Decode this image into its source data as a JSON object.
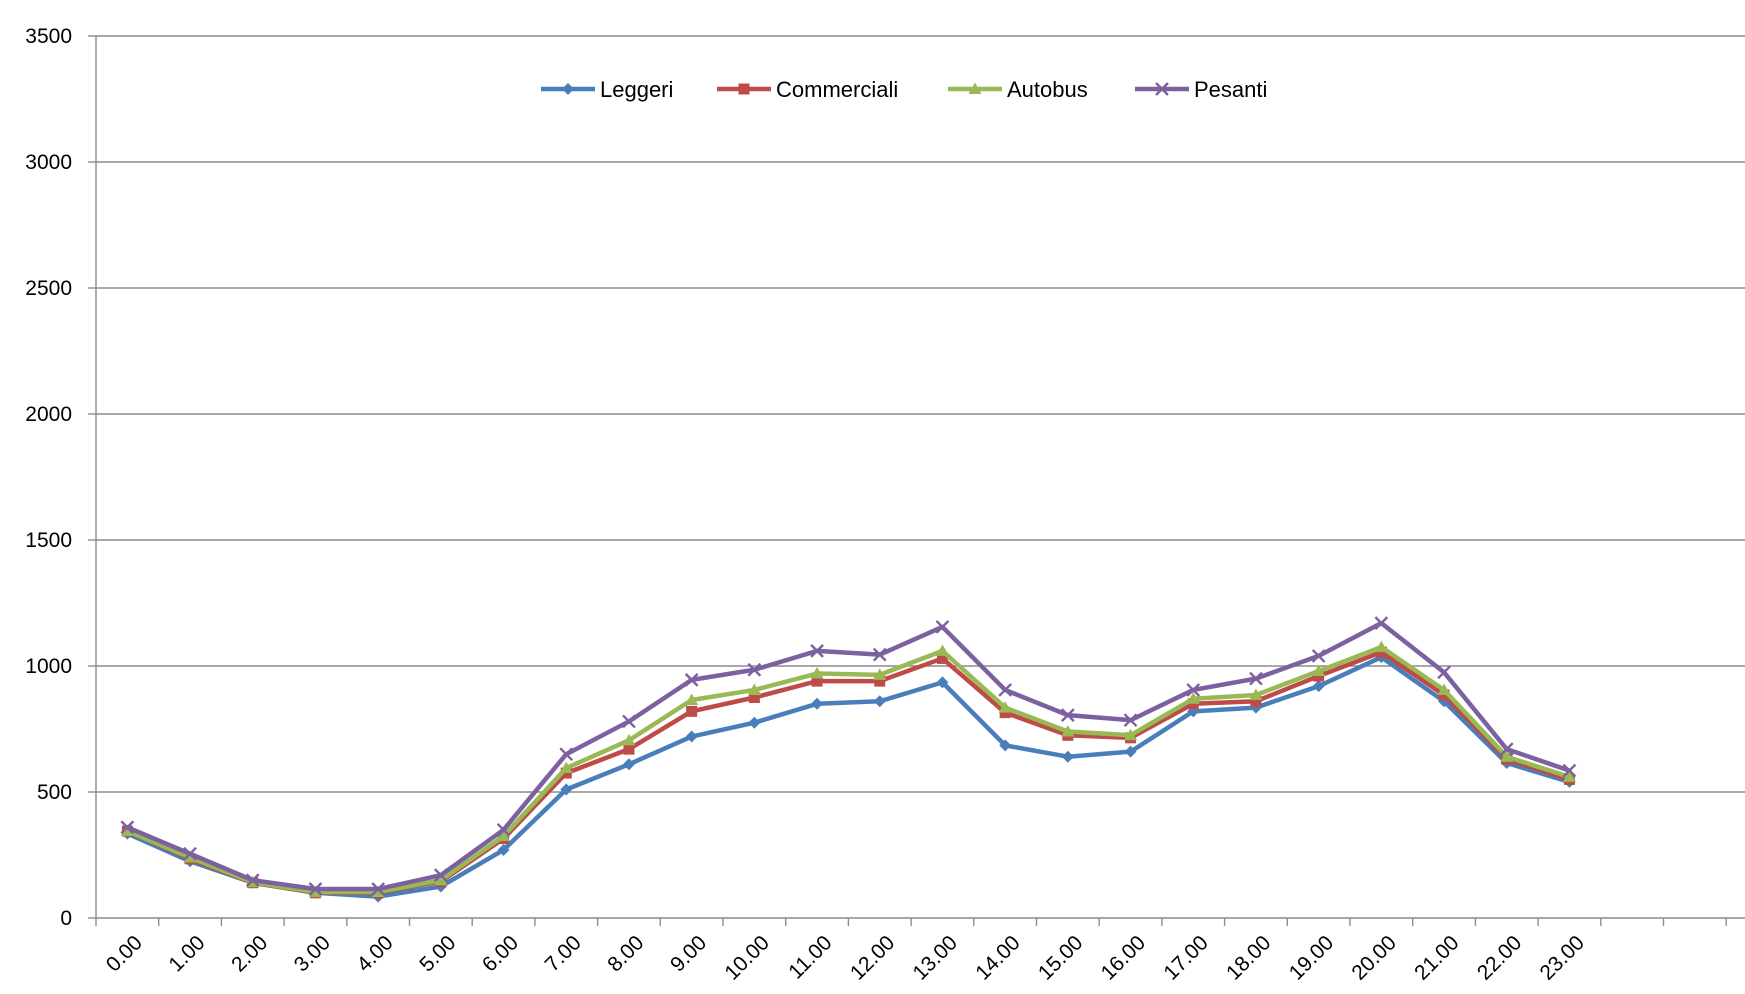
{
  "chart_data": {
    "type": "line",
    "title": "",
    "xlabel": "",
    "ylabel": "",
    "ylim": [
      0,
      3500
    ],
    "yticks": [
      0,
      500,
      1000,
      1500,
      2000,
      2500,
      3000,
      3500
    ],
    "grid": "horizontal",
    "legend_position": "top-center",
    "categories": [
      "0.00",
      "1.00",
      "2.00",
      "3.00",
      "4.00",
      "5.00",
      "6.00",
      "7.00",
      "8.00",
      "9.00",
      "10.00",
      "11.00",
      "12.00",
      "13.00",
      "14.00",
      "15.00",
      "16.00",
      "17.00",
      "18.00",
      "19.00",
      "20.00",
      "21.00",
      "22.00",
      "23.00"
    ],
    "series": [
      {
        "name": "Leggeri",
        "color": "#4a7ebb",
        "marker": "diamond",
        "values": [
          335,
          225,
          140,
          100,
          85,
          125,
          270,
          510,
          610,
          720,
          775,
          850,
          860,
          935,
          685,
          640,
          660,
          820,
          835,
          920,
          1035,
          860,
          615,
          540
        ]
      },
      {
        "name": "Commerciali",
        "color": "#be4b48",
        "marker": "square",
        "values": [
          345,
          235,
          140,
          100,
          100,
          145,
          315,
          575,
          670,
          820,
          875,
          940,
          940,
          1030,
          815,
          725,
          715,
          850,
          860,
          960,
          1055,
          885,
          630,
          550
        ]
      },
      {
        "name": "Autobus",
        "color": "#98b954",
        "marker": "triangle",
        "values": [
          345,
          240,
          142,
          103,
          103,
          150,
          325,
          595,
          705,
          865,
          905,
          970,
          965,
          1060,
          835,
          740,
          725,
          870,
          885,
          980,
          1075,
          905,
          640,
          560
        ]
      },
      {
        "name": "Pesanti",
        "color": "#7d60a0",
        "marker": "x",
        "values": [
          360,
          255,
          150,
          115,
          115,
          170,
          350,
          650,
          780,
          945,
          985,
          1060,
          1045,
          1155,
          905,
          805,
          785,
          905,
          950,
          1040,
          1170,
          975,
          670,
          585
        ]
      }
    ]
  }
}
